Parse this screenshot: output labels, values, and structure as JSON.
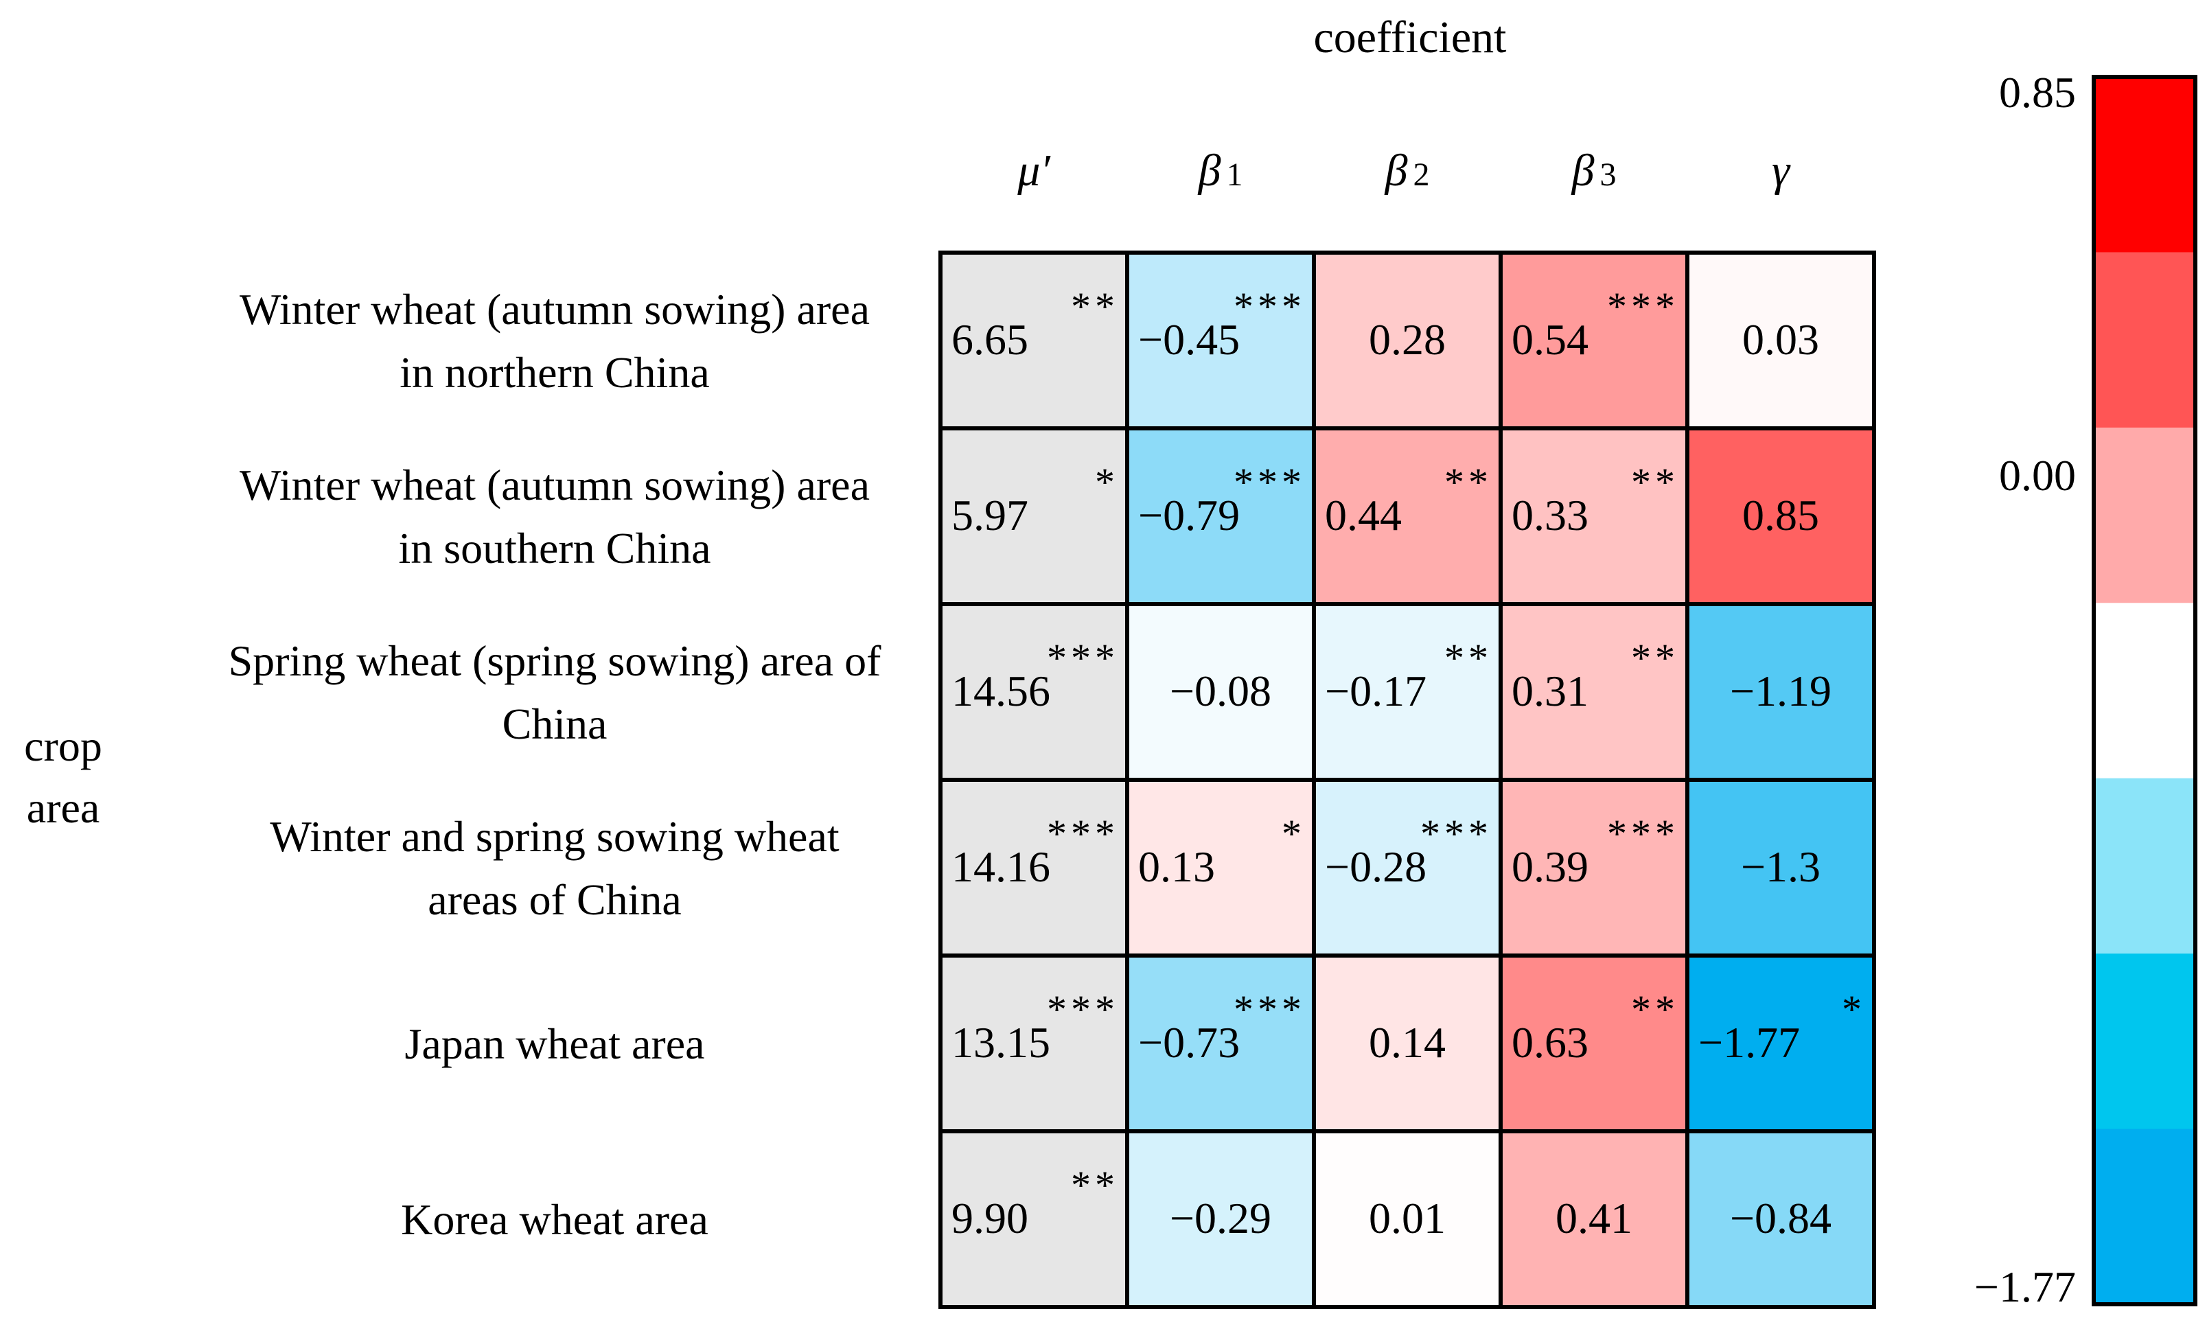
{
  "chart_data": {
    "type": "heatmap",
    "title": "coefficient",
    "xlabel": "coefficient",
    "ylabel": "crop area",
    "ylabel_lines": [
      "crop",
      "area"
    ],
    "columns": [
      "μ′",
      "β1",
      "β2",
      "β3",
      "γ"
    ],
    "rows": [
      {
        "lines": [
          "Winter wheat (autumn sowing) area",
          "in northern China"
        ],
        "values": [
          6.65,
          -0.45,
          0.28,
          0.54,
          0.03
        ],
        "labels": [
          "6.65",
          "−0.45",
          "0.28",
          "0.54",
          "0.03"
        ],
        "sig": [
          "**",
          "***",
          "",
          "***",
          ""
        ]
      },
      {
        "lines": [
          "Winter wheat (autumn sowing) area",
          "in southern China"
        ],
        "values": [
          5.97,
          -0.79,
          0.44,
          0.33,
          0.85
        ],
        "labels": [
          "5.97",
          "−0.79",
          "0.44",
          "0.33",
          "0.85"
        ],
        "sig": [
          "*",
          "***",
          "**",
          "**",
          ""
        ]
      },
      {
        "lines": [
          "Spring wheat (spring sowing) area of",
          "China"
        ],
        "values": [
          14.56,
          -0.08,
          -0.17,
          0.31,
          -1.19
        ],
        "labels": [
          "14.56",
          "−0.08",
          "−0.17",
          "0.31",
          "−1.19"
        ],
        "sig": [
          "***",
          "",
          "**",
          "**",
          ""
        ]
      },
      {
        "lines": [
          "Winter and spring sowing wheat",
          "areas of China"
        ],
        "values": [
          14.16,
          0.13,
          -0.28,
          0.39,
          -1.3
        ],
        "labels": [
          "14.16",
          "0.13",
          "−0.28",
          "0.39",
          "−1.3"
        ],
        "sig": [
          "***",
          "*",
          "***",
          "***",
          ""
        ]
      },
      {
        "lines": [
          "Japan wheat area"
        ],
        "values": [
          13.15,
          -0.73,
          0.14,
          0.63,
          -1.77
        ],
        "labels": [
          "13.15",
          "−0.73",
          "0.14",
          "0.63",
          "−1.77"
        ],
        "sig": [
          "***",
          "***",
          "",
          "**",
          "*"
        ]
      },
      {
        "lines": [
          "Korea wheat area"
        ],
        "values": [
          9.9,
          -0.29,
          0.01,
          0.41,
          -0.84
        ],
        "labels": [
          "9.90",
          "−0.29",
          "0.01",
          "0.41",
          "−0.84"
        ],
        "sig": [
          "**",
          "",
          "",
          "",
          ""
        ]
      }
    ],
    "colorbar": {
      "min": -1.77,
      "max": 0.85,
      "tick_values": [
        0.85,
        0.0,
        -1.77
      ],
      "tick_labels": [
        "0.85",
        "0.00",
        "−1.77"
      ],
      "bands": [
        "#ff0000",
        "#ff5555",
        "#ffaaaa",
        "#ffffff",
        "#8be4f9",
        "#00c6ee",
        "#00aeef"
      ]
    },
    "colors": {
      "out_of_range": "#e6e6e6",
      "neg_full": "#00aeef",
      "pos_full": "#ff0000",
      "neutral": "#ffffff",
      "border": "#000000",
      "text": "#000000"
    }
  }
}
